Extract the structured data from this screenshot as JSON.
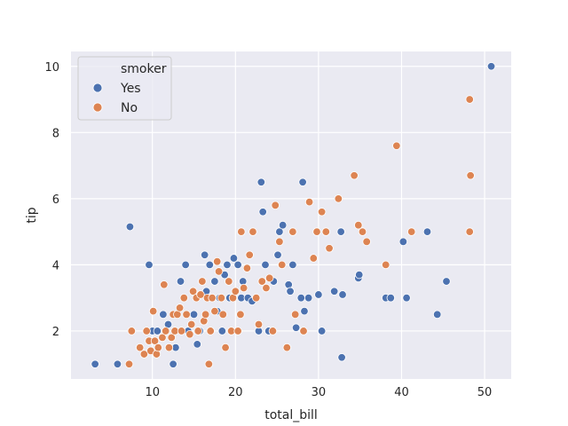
{
  "chart_data": {
    "type": "scatter",
    "title": "",
    "xlabel": "total_bill",
    "ylabel": "tip",
    "xlim": [
      0.2,
      53.2
    ],
    "ylim": [
      0.55,
      10.45
    ],
    "xticks": [
      10,
      20,
      30,
      40,
      50
    ],
    "yticks": [
      2,
      4,
      6,
      8,
      10
    ],
    "grid": true,
    "legend": {
      "title": "smoker",
      "placement": "top-left"
    },
    "series": [
      {
        "name": "Yes",
        "color": "#4c72b0",
        "points": [
          [
            3.1,
            1.0
          ],
          [
            5.8,
            1.0
          ],
          [
            7.3,
            5.15
          ],
          [
            9.6,
            4.0
          ],
          [
            10.0,
            2.0
          ],
          [
            10.6,
            2.0
          ],
          [
            11.3,
            2.5
          ],
          [
            11.9,
            2.2
          ],
          [
            12.5,
            1.0
          ],
          [
            12.8,
            1.5
          ],
          [
            13.4,
            3.5
          ],
          [
            14.0,
            4.0
          ],
          [
            14.3,
            2.0
          ],
          [
            15.0,
            2.5
          ],
          [
            15.4,
            1.6
          ],
          [
            15.7,
            2.0
          ],
          [
            16.3,
            4.3
          ],
          [
            16.5,
            3.2
          ],
          [
            16.9,
            4.0
          ],
          [
            17.2,
            3.0
          ],
          [
            17.5,
            3.5
          ],
          [
            17.8,
            2.6
          ],
          [
            18.1,
            3.0
          ],
          [
            18.4,
            2.0
          ],
          [
            18.7,
            3.7
          ],
          [
            19.0,
            4.0
          ],
          [
            19.3,
            3.0
          ],
          [
            19.8,
            4.2
          ],
          [
            20.3,
            4.0
          ],
          [
            20.7,
            3.0
          ],
          [
            20.9,
            3.5
          ],
          [
            21.5,
            3.0
          ],
          [
            22.0,
            2.9
          ],
          [
            22.8,
            2.0
          ],
          [
            23.1,
            6.5
          ],
          [
            23.3,
            5.6
          ],
          [
            23.6,
            4.0
          ],
          [
            24.0,
            2.0
          ],
          [
            24.6,
            3.5
          ],
          [
            25.1,
            4.3
          ],
          [
            25.3,
            5.0
          ],
          [
            25.7,
            5.2
          ],
          [
            26.4,
            3.4
          ],
          [
            26.6,
            3.2
          ],
          [
            26.9,
            4.0
          ],
          [
            27.3,
            2.1
          ],
          [
            27.9,
            3.0
          ],
          [
            28.1,
            6.5
          ],
          [
            28.3,
            2.6
          ],
          [
            28.8,
            3.0
          ],
          [
            30.0,
            3.1
          ],
          [
            30.4,
            2.0
          ],
          [
            31.9,
            3.2
          ],
          [
            32.7,
            5.0
          ],
          [
            32.8,
            1.2
          ],
          [
            32.9,
            3.1
          ],
          [
            34.8,
            3.6
          ],
          [
            34.9,
            3.7
          ],
          [
            38.1,
            3.0
          ],
          [
            38.7,
            3.0
          ],
          [
            40.2,
            4.7
          ],
          [
            40.6,
            3.0
          ],
          [
            43.1,
            5.0
          ],
          [
            44.3,
            2.5
          ],
          [
            45.4,
            3.5
          ],
          [
            50.8,
            10.0
          ]
        ]
      },
      {
        "name": "No",
        "color": "#dd8452",
        "points": [
          [
            7.2,
            1.0
          ],
          [
            7.5,
            2.0
          ],
          [
            8.5,
            1.5
          ],
          [
            9.0,
            1.3
          ],
          [
            9.3,
            2.0
          ],
          [
            9.6,
            1.7
          ],
          [
            9.8,
            1.4
          ],
          [
            10.1,
            2.6
          ],
          [
            10.3,
            1.7
          ],
          [
            10.5,
            1.3
          ],
          [
            10.7,
            1.5
          ],
          [
            11.2,
            1.8
          ],
          [
            11.4,
            3.4
          ],
          [
            11.6,
            2.0
          ],
          [
            12.0,
            1.5
          ],
          [
            12.3,
            1.8
          ],
          [
            12.5,
            2.5
          ],
          [
            12.7,
            2.0
          ],
          [
            13.0,
            2.5
          ],
          [
            13.3,
            2.7
          ],
          [
            13.5,
            2.0
          ],
          [
            13.8,
            3.0
          ],
          [
            14.1,
            2.5
          ],
          [
            14.5,
            1.9
          ],
          [
            14.7,
            2.2
          ],
          [
            14.9,
            3.2
          ],
          [
            15.3,
            3.0
          ],
          [
            15.5,
            2.0
          ],
          [
            15.8,
            3.1
          ],
          [
            16.0,
            3.5
          ],
          [
            16.2,
            2.3
          ],
          [
            16.4,
            2.5
          ],
          [
            16.6,
            3.0
          ],
          [
            16.8,
            1.0
          ],
          [
            17.0,
            2.0
          ],
          [
            17.2,
            3.0
          ],
          [
            17.5,
            2.6
          ],
          [
            17.8,
            4.1
          ],
          [
            18.0,
            3.8
          ],
          [
            18.3,
            3.0
          ],
          [
            18.5,
            2.5
          ],
          [
            18.8,
            1.5
          ],
          [
            19.2,
            3.5
          ],
          [
            19.5,
            2.0
          ],
          [
            19.7,
            3.0
          ],
          [
            20.0,
            3.2
          ],
          [
            20.3,
            2.0
          ],
          [
            20.6,
            2.5
          ],
          [
            20.7,
            5.0
          ],
          [
            21.0,
            3.3
          ],
          [
            21.4,
            3.9
          ],
          [
            21.7,
            4.3
          ],
          [
            22.1,
            5.0
          ],
          [
            22.5,
            3.0
          ],
          [
            22.8,
            2.2
          ],
          [
            23.2,
            3.5
          ],
          [
            23.7,
            3.3
          ],
          [
            24.1,
            3.6
          ],
          [
            24.5,
            2.0
          ],
          [
            24.8,
            5.8
          ],
          [
            25.3,
            4.7
          ],
          [
            25.6,
            4.0
          ],
          [
            26.2,
            1.5
          ],
          [
            26.9,
            5.0
          ],
          [
            27.2,
            2.5
          ],
          [
            28.2,
            2.0
          ],
          [
            28.9,
            5.9
          ],
          [
            29.4,
            4.2
          ],
          [
            29.8,
            5.0
          ],
          [
            30.4,
            5.6
          ],
          [
            30.9,
            5.0
          ],
          [
            31.3,
            4.5
          ],
          [
            32.4,
            6.0
          ],
          [
            34.3,
            6.7
          ],
          [
            34.8,
            5.2
          ],
          [
            35.3,
            5.0
          ],
          [
            35.8,
            4.7
          ],
          [
            38.1,
            4.0
          ],
          [
            39.4,
            7.6
          ],
          [
            41.2,
            5.0
          ],
          [
            48.2,
            9.0
          ],
          [
            48.3,
            6.7
          ],
          [
            48.2,
            5.0
          ]
        ]
      }
    ]
  }
}
